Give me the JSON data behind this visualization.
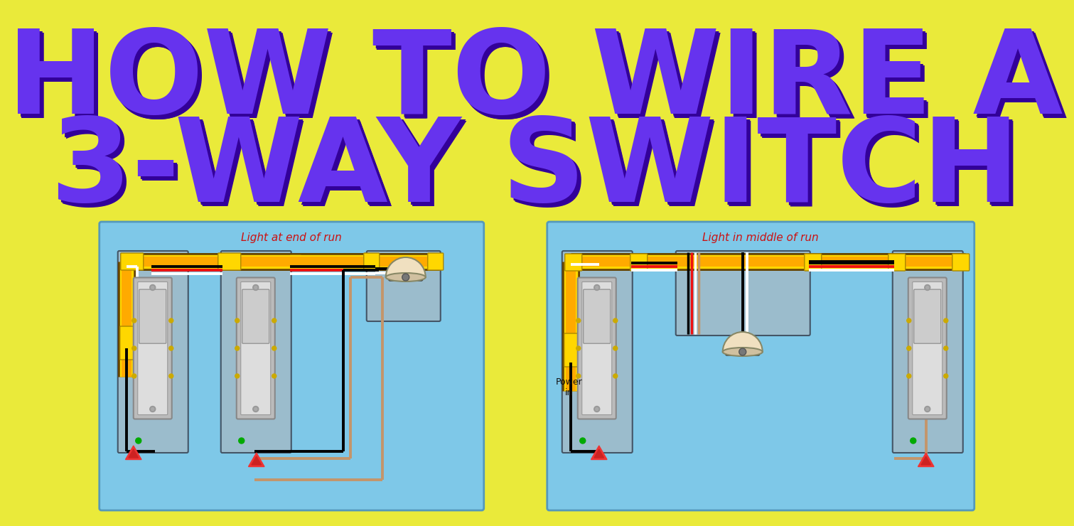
{
  "title_line1": "HOW TO WIRE A",
  "title_line2": "3-WAY SWITCH",
  "title_color": "#6633EE",
  "title_shadow_color": "#330099",
  "background_color": "#EAEA3A",
  "diagram_bg_color": "#7EC8E8",
  "diagram_border_color": "#5599BB",
  "label1": "Light at end of run",
  "label2": "Light in middle of run",
  "label_color": "#CC1111",
  "power_label": "Power\nin",
  "wire_black": "#000000",
  "wire_white": "#FFFFFF",
  "wire_red": "#EE1111",
  "wire_brown": "#C4956A",
  "wire_green": "#00AA00",
  "wire_yellow_outer": "#FFD700",
  "wire_yellow_inner": "#FFAA00",
  "switch_body": "#BBBBBB",
  "switch_border": "#888888",
  "switch_face": "#DDDDDD",
  "switch_toggle": "#CCCCCC",
  "lamp_top": "#5A3010",
  "lamp_globe": "#F0E0C0",
  "lamp_base": "#777777",
  "nut_color": "#EE3333",
  "box_border": "#555566"
}
